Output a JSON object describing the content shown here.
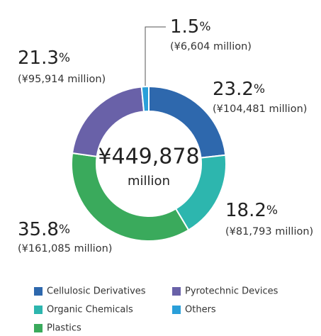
{
  "chart_data": {
    "type": "pie",
    "donut": true,
    "categories": [
      "Cellulosic Derivatives",
      "Organic Chemicals",
      "Plastics",
      "Pyrotechnic Devices",
      "Others"
    ],
    "values": [
      23.2,
      18.2,
      35.8,
      21.3,
      1.5
    ],
    "value_labels": [
      "23.2%",
      "18.2%",
      "35.8%",
      "21.3%",
      "1.5%"
    ],
    "amount_labels": [
      "(¥104,481 million)",
      "(¥81,793 million)",
      "(¥161,085 million)",
      "(¥95,914 million)",
      "(¥6,604 million)"
    ],
    "colors": [
      "#2e68ad",
      "#2db6ae",
      "#3aaa5c",
      "#6961a8",
      "#2a9fd9"
    ],
    "center_label": "¥449,878",
    "center_sublabel": "million",
    "legend": true
  }
}
